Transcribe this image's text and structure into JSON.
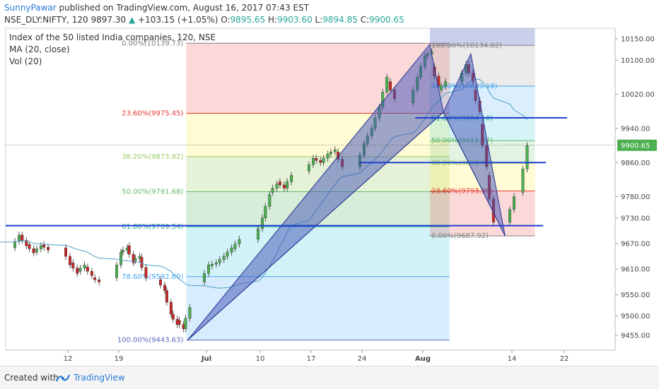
{
  "header": {
    "author": "SunnyPawar",
    "published_text": "published on TradingView.com, August 16, 2017 07:43 EST",
    "symbol": "NSE_DLY:NIFTY, 120",
    "last": "9897.30",
    "change": "+103.15 (+1.05%)",
    "o_label": "O:",
    "o_value": "9895.65",
    "h_label": "H:",
    "h_value": "9903.60",
    "l_label": "L:",
    "l_value": "9894.85",
    "c_label": "C:",
    "c_value": "9900.65"
  },
  "legend": {
    "title": "Index of the 50 listed India companies, 120, NSE",
    "ma": "MA (20, close)",
    "vol": "Vol (20)"
  },
  "footer": {
    "created_with": "Created with",
    "brand": "TradingView"
  },
  "colors": {
    "up": "#26a69a",
    "down": "#ef5350",
    "candle_up_body": "#4caf50",
    "candle_down_body": "#c62828",
    "ma": "#4f9ec7",
    "pattern_fill": "#3f51b5",
    "pattern_stroke": "#283593",
    "hline": "#1f3fcf",
    "author": "#2a7bd6"
  },
  "chart_data": {
    "type": "candlestick",
    "x_tick_labels": [
      "12",
      "19",
      "Jul",
      "10",
      "17",
      "24",
      "Aug",
      "14",
      "22"
    ],
    "y_tick_labels": [
      "10150.00",
      "10100.00",
      "10020.00",
      "9940.00",
      "9860.00",
      "9780.00",
      "9730.00",
      "9670.00",
      "9610.00",
      "9550.00",
      "9500.00",
      "9455.00"
    ],
    "ylim": [
      9420,
      10175
    ],
    "last_price_label": "9900.65",
    "fib_retracement_1": {
      "from": 10139.73,
      "to": 9443.63,
      "levels": [
        {
          "label": "0.00%(10139.73)",
          "value": 10139.73
        },
        {
          "label": "23.60%(9975.45)",
          "value": 9975.45
        },
        {
          "label": "38.20%(9873.82)",
          "value": 9873.82
        },
        {
          "label": "50.00%(9791.68)",
          "value": 9791.68
        },
        {
          "label": "61.80%(9709.54)",
          "value": 9709.54
        },
        {
          "label": "78.60%(9592.60)",
          "value": 9592.6
        },
        {
          "label": "100.00%(9443.63)",
          "value": 9443.63
        }
      ]
    },
    "fib_retracement_2": {
      "from": 10134.82,
      "to": 9687.92,
      "levels": [
        {
          "label": "100.00%(10134.82)",
          "value": 10134.82
        },
        {
          "label": "78.60%(10039.18)",
          "value": 10039.18
        },
        {
          "label": "61.80%(9964.10)",
          "value": 9964.1
        },
        {
          "label": "50.00%(9911.37)",
          "value": 9911.37
        },
        {
          "label": "38.20%(9858.63)",
          "value": 9858.63
        },
        {
          "label": "23.60%(9793.39)",
          "value": 9793.39
        },
        {
          "label": "0.00%(9687.92)",
          "value": 9687.92
        }
      ]
    },
    "horizontal_lines": [
      9965,
      9860,
      9712
    ],
    "pattern_points": [
      {
        "date": "Jun 30",
        "price": 9443.6
      },
      {
        "date": "Aug 2",
        "price": 10137
      },
      {
        "date": "Aug 4",
        "price": 9978
      },
      {
        "date": "Aug 8",
        "price": 10115
      },
      {
        "date": "Aug 13",
        "price": 9688
      }
    ]
  }
}
